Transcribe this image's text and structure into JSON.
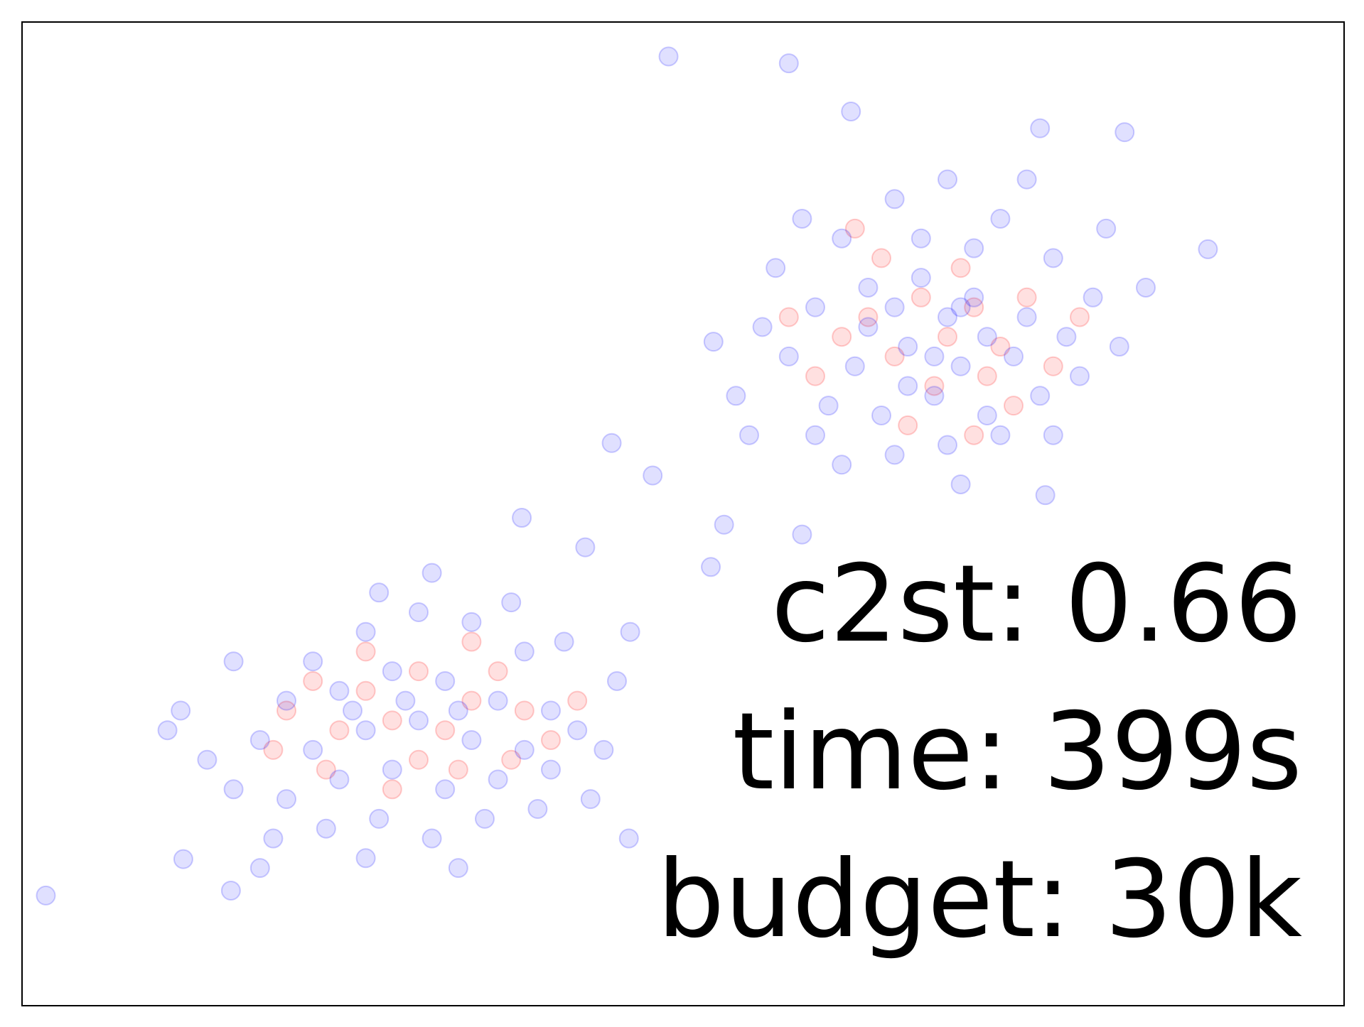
{
  "chart_data": {
    "type": "scatter",
    "xlim": [
      0,
      100
    ],
    "ylim": [
      0,
      100
    ],
    "annotations": [
      "c2st: 0.66",
      "time: 399s",
      "budget: 30k"
    ],
    "alpha": 0.12,
    "series": [
      {
        "color": "#ff0000",
        "x": [
          64,
          68,
          72,
          70,
          66,
          74,
          62,
          76,
          69,
          73,
          65,
          71,
          60,
          78,
          67,
          75,
          58,
          63,
          80,
          72,
          26,
          30,
          34,
          28,
          32,
          24,
          36,
          22,
          38,
          30,
          26,
          34,
          20,
          40,
          28,
          33,
          23,
          37,
          19,
          42
        ],
        "y": [
          70,
          72,
          71,
          68,
          66,
          67,
          68,
          72,
          63,
          64,
          76,
          75,
          64,
          65,
          59,
          61,
          70,
          79,
          70,
          58,
          32,
          34,
          31,
          29,
          28,
          28,
          34,
          33,
          30,
          25,
          36,
          37,
          30,
          27,
          22,
          24,
          24,
          25,
          26,
          31
        ]
      },
      {
        "color": "#0000ff",
        "x": [
          62,
          66,
          70,
          74,
          78,
          64,
          68,
          72,
          76,
          60,
          58,
          63,
          67,
          71,
          75,
          79,
          81,
          57,
          61,
          65,
          69,
          73,
          77,
          80,
          66,
          70,
          74,
          60,
          56,
          83,
          85,
          59,
          68,
          72,
          64,
          70,
          73,
          67,
          71,
          62,
          78,
          54,
          55,
          82,
          76,
          71,
          69,
          66,
          22,
          26,
          30,
          34,
          38,
          20,
          24,
          28,
          32,
          36,
          40,
          18,
          22,
          26,
          30,
          34,
          38,
          42,
          16,
          20,
          24,
          28,
          32,
          36,
          40,
          44,
          19,
          23,
          27,
          31,
          35,
          14,
          12,
          16,
          27,
          31,
          37,
          41,
          45,
          46,
          29,
          33,
          25,
          18,
          26,
          33,
          11,
          39,
          43,
          48.9,
          58.0,
          62.7,
          89.7,
          1.8,
          15.8,
          44.6,
          47.7,
          52.3,
          53.1,
          52.1,
          59.0,
          77.4,
          77.0,
          83.4,
          42.6,
          37.8,
          45.9,
          12.2
        ],
        "y": [
          78,
          82,
          84,
          80,
          76,
          73,
          74,
          72,
          70,
          71,
          66,
          65,
          67,
          65,
          66,
          68,
          72,
          75,
          61,
          60,
          62,
          60,
          62,
          64,
          56,
          57,
          58,
          58,
          69,
          67,
          73,
          80,
          78,
          77,
          69,
          70,
          68,
          63,
          53,
          55,
          58,
          62,
          58,
          79,
          84,
          71,
          66,
          71,
          35,
          38,
          40,
          39,
          36,
          31,
          32,
          34,
          33,
          31,
          30,
          27,
          26,
          28,
          29,
          27,
          26,
          28,
          22,
          21,
          23,
          24,
          22,
          23,
          24,
          26,
          17,
          18,
          19,
          17,
          19,
          25,
          30,
          35,
          42,
          44,
          41,
          37,
          33,
          38,
          31,
          30,
          30,
          14,
          15,
          14,
          28,
          20,
          21,
          96.5,
          95.8,
          90.9,
          76.9,
          11.2,
          11.7,
          57.2,
          53.9,
          67.5,
          48.9,
          44.6,
          47.9,
          51.9,
          89.2,
          88.8,
          46.6,
          49.6,
          17.0,
          14.9
        ]
      }
    ]
  }
}
